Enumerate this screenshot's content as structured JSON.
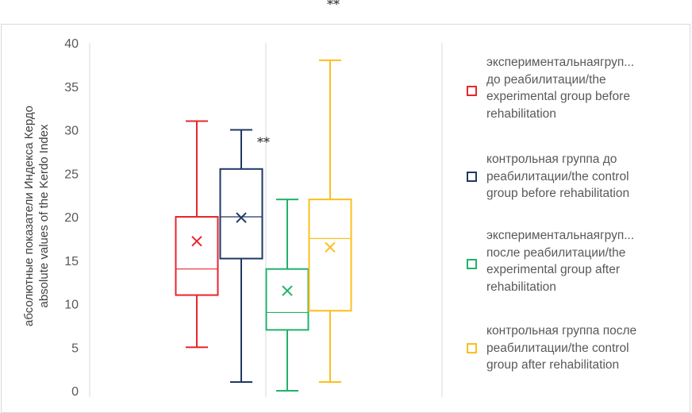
{
  "chart_data": {
    "type": "box",
    "title": "",
    "top_annotation": "**",
    "ylabel_lines": [
      "абсолютные показатели Индекса Кердо",
      "absolute values of the Kerdo Index"
    ],
    "xlabel": "",
    "ylim": [
      0,
      40
    ],
    "y_ticks": [
      "0",
      "5",
      "10",
      "15",
      "20",
      "25",
      "30",
      "35",
      "40"
    ],
    "grid": "vertical separator only",
    "legend_position": "right",
    "series": [
      {
        "name": "экспериментальнаягруп... до реабилитации/the experimental group before rehabilitation",
        "color": "#e8262c",
        "min": 5,
        "q1": 11,
        "median": 14,
        "q3": 20,
        "max": 31,
        "mean": 17.2
      },
      {
        "name": "контрольная группа до реабилитации/the control group before rehabilitation",
        "color": "#1f3864",
        "min": 1,
        "q1": 15.2,
        "median": 20,
        "q3": 25.5,
        "max": 30,
        "mean": 19.9
      },
      {
        "name": "экспериментальнаягруп... после реабилитации/the experimental group after rehabilitation",
        "color": "#21b26b",
        "min": 0,
        "q1": 7,
        "median": 9,
        "q3": 14,
        "max": 22,
        "mean": 11.5
      },
      {
        "name": "контрольная группа после реабилитации/the control group after rehabilitation",
        "color": "#fbbf1f",
        "min": 1,
        "q1": 9.2,
        "median": 17.5,
        "q3": 22,
        "max": 38,
        "mean": 16.5
      }
    ],
    "annotations": [
      {
        "text": "**",
        "x_between_series": [
          1,
          2
        ],
        "y": 29
      }
    ]
  },
  "legend": [
    {
      "label_lines": [
        "экспериментальнаягруп...",
        "до реабилитации/the",
        "experimental group before",
        "rehabilitation"
      ]
    },
    {
      "label_lines": [
        "контрольная группа до",
        "реабилитации/the control",
        "group before rehabilitation"
      ]
    },
    {
      "label_lines": [
        "экспериментальнаягруп...",
        "после реабилитации/the",
        "experimental group after",
        "rehabilitation"
      ]
    },
    {
      "label_lines": [
        "контрольная группа после",
        "реабилитации/the control",
        "group after rehabilitation"
      ]
    }
  ]
}
